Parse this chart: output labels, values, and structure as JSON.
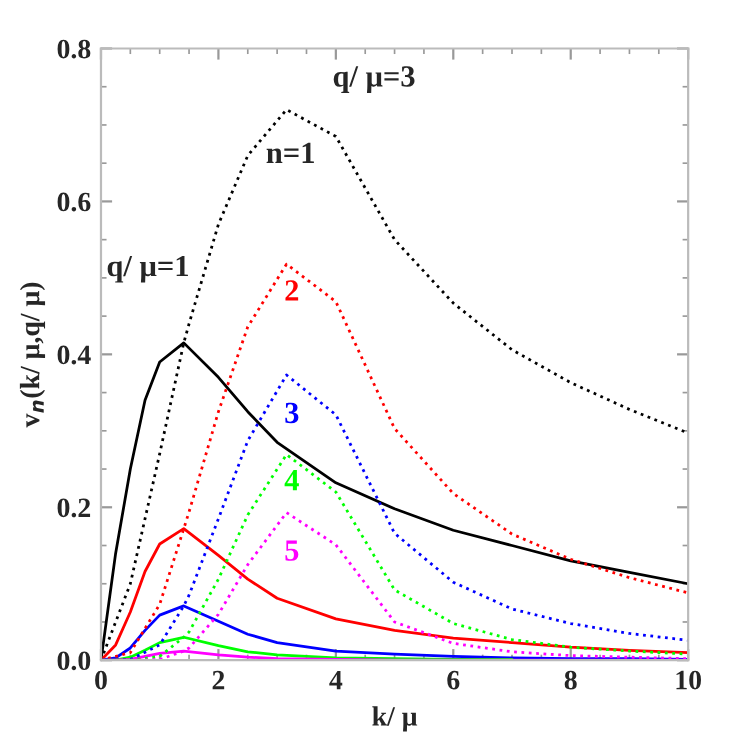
{
  "chart_data": {
    "type": "line",
    "xlabel": "k/ μ",
    "ylabel": "v$_{n}$(k/ μ,q/ μ)",
    "xlim": [
      0,
      10
    ],
    "ylim": [
      0,
      0.8
    ],
    "xticks": [
      0,
      2,
      4,
      6,
      8,
      10
    ],
    "yticks": [
      {
        "value": 0,
        "label": "0.0"
      },
      {
        "value": 0.2,
        "label": "0.2"
      },
      {
        "value": 0.4,
        "label": "0.4"
      },
      {
        "value": 0.6,
        "label": "0.6"
      },
      {
        "value": 0.8,
        "label": "0.8"
      }
    ],
    "grid": false,
    "legend": false,
    "marker": "none",
    "series": [
      {
        "color": "#000000",
        "line_style": "solid",
        "x": [
          0,
          0.25,
          0.5,
          0.75,
          1,
          1.41,
          2,
          2.5,
          3,
          4,
          5,
          6,
          7,
          8,
          9,
          10
        ],
        "values": [
          0,
          0.14,
          0.25,
          0.34,
          0.39,
          0.415,
          0.37,
          0.325,
          0.285,
          0.232,
          0.198,
          0.17,
          0.15,
          0.13,
          0.115,
          0.1
        ]
      },
      {
        "color": "#ff0000",
        "line_style": "solid",
        "x": [
          0,
          0.25,
          0.5,
          0.75,
          1,
          1.41,
          2,
          2.5,
          3,
          4,
          5,
          6,
          7,
          8,
          9,
          10
        ],
        "values": [
          0,
          0.02,
          0.063,
          0.116,
          0.152,
          0.172,
          0.137,
          0.106,
          0.081,
          0.054,
          0.039,
          0.029,
          0.023,
          0.017,
          0.013,
          0.01
        ]
      },
      {
        "color": "#0000ff",
        "line_style": "solid",
        "x": [
          0,
          0.25,
          0.5,
          0.75,
          1,
          1.41,
          2,
          2.5,
          3,
          4,
          5,
          6,
          7,
          8,
          9,
          10
        ],
        "values": [
          0,
          0.003,
          0.016,
          0.039,
          0.059,
          0.071,
          0.051,
          0.034,
          0.023,
          0.012,
          0.008,
          0.005,
          0.003,
          0.002,
          0.002,
          0.001
        ]
      },
      {
        "color": "#00ff00",
        "line_style": "solid",
        "x": [
          0,
          0.25,
          0.5,
          0.75,
          1,
          1.41,
          2,
          2.5,
          3,
          4,
          5,
          6,
          7
        ],
        "values": [
          0,
          0,
          0.004,
          0.013,
          0.023,
          0.03,
          0.019,
          0.011,
          0.007,
          0.003,
          0.002,
          0.001,
          0.001
        ]
      },
      {
        "color": "#ff00ff",
        "line_style": "solid",
        "x": [
          0,
          0.25,
          0.5,
          0.75,
          1,
          1.41,
          2,
          2.5,
          3,
          4,
          5,
          6,
          7,
          8,
          9,
          10
        ],
        "values": [
          0,
          0,
          0.001,
          0.005,
          0.009,
          0.012,
          0.007,
          0.004,
          0.002,
          0.001,
          0,
          0,
          0,
          0,
          0,
          0
        ]
      },
      {
        "color": "#000000",
        "line_style": "dotted",
        "x": [
          0,
          0.5,
          1,
          1.41,
          1.5,
          2,
          2.5,
          3.16,
          4,
          5,
          6,
          7,
          8,
          9,
          10
        ],
        "values": [
          0,
          0.1,
          0.27,
          0.415,
          0.44,
          0.57,
          0.66,
          0.72,
          0.685,
          0.55,
          0.467,
          0.406,
          0.363,
          0.328,
          0.297
        ]
      },
      {
        "color": "#ff0000",
        "line_style": "dotted",
        "x": [
          0,
          0.5,
          1,
          1.41,
          1.5,
          2,
          2.5,
          3.16,
          4,
          5,
          6,
          7,
          8,
          9,
          10
        ],
        "values": [
          0,
          0.01,
          0.073,
          0.172,
          0.194,
          0.325,
          0.436,
          0.518,
          0.469,
          0.303,
          0.218,
          0.165,
          0.132,
          0.108,
          0.088
        ]
      },
      {
        "color": "#0000ff",
        "line_style": "dotted",
        "x": [
          0,
          0.5,
          1,
          1.41,
          1.5,
          2,
          2.5,
          3.16,
          4,
          5,
          6,
          7,
          8,
          9,
          10
        ],
        "values": [
          0,
          0.001,
          0.02,
          0.071,
          0.085,
          0.185,
          0.287,
          0.373,
          0.321,
          0.166,
          0.102,
          0.067,
          0.048,
          0.035,
          0.026
        ]
      },
      {
        "color": "#00ff00",
        "line_style": "dotted",
        "x": [
          0,
          0.5,
          1,
          1.41,
          1.5,
          2,
          2.5,
          3.16,
          4,
          5,
          6,
          7,
          8,
          9,
          10
        ],
        "values": [
          0,
          0,
          0.005,
          0.03,
          0.037,
          0.106,
          0.19,
          0.269,
          0.22,
          0.092,
          0.048,
          0.027,
          0.017,
          0.012,
          0.008
        ]
      },
      {
        "color": "#ff00ff",
        "line_style": "dotted",
        "x": [
          0,
          0.5,
          1,
          1.41,
          1.5,
          2,
          2.5,
          3.16,
          4,
          5,
          6,
          7,
          8,
          9,
          10
        ],
        "values": [
          0,
          0,
          0.001,
          0.012,
          0.016,
          0.06,
          0.125,
          0.193,
          0.151,
          0.05,
          0.022,
          0.011,
          0.006,
          0.004,
          0.002
        ]
      }
    ],
    "annotations": [
      "q/ μ=3",
      "n=1",
      "q/ μ=1",
      "2",
      "3",
      "4",
      "5"
    ]
  }
}
